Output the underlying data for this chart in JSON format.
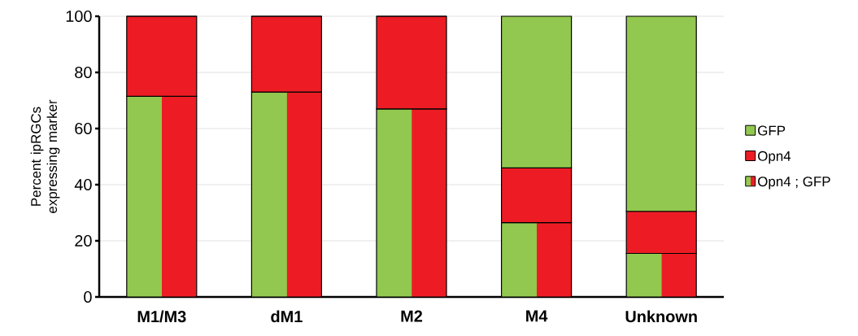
{
  "chart_data": {
    "type": "bar",
    "stacked": true,
    "ylabel": "Percent ipRGCs expressing marker",
    "categories": [
      "M1/M3",
      "dM1",
      "M2",
      "M4",
      "Unknown"
    ],
    "series": [
      {
        "name": "Opn4 ; GFP",
        "color": [
          "#92c84f",
          "#ed1c24"
        ],
        "values": [
          71.5,
          73,
          67,
          26.5,
          15.5
        ]
      },
      {
        "name": "Opn4",
        "color": "#ed1c24",
        "values": [
          28.5,
          27,
          33,
          19.5,
          15
        ]
      },
      {
        "name": "GFP",
        "color": "#92c84f",
        "values": [
          0,
          0,
          0,
          54,
          69.5
        ]
      }
    ],
    "ylim": [
      0,
      100
    ],
    "yticks": [
      0,
      20,
      40,
      60,
      80,
      100
    ],
    "grid": "y",
    "legend": "right"
  }
}
